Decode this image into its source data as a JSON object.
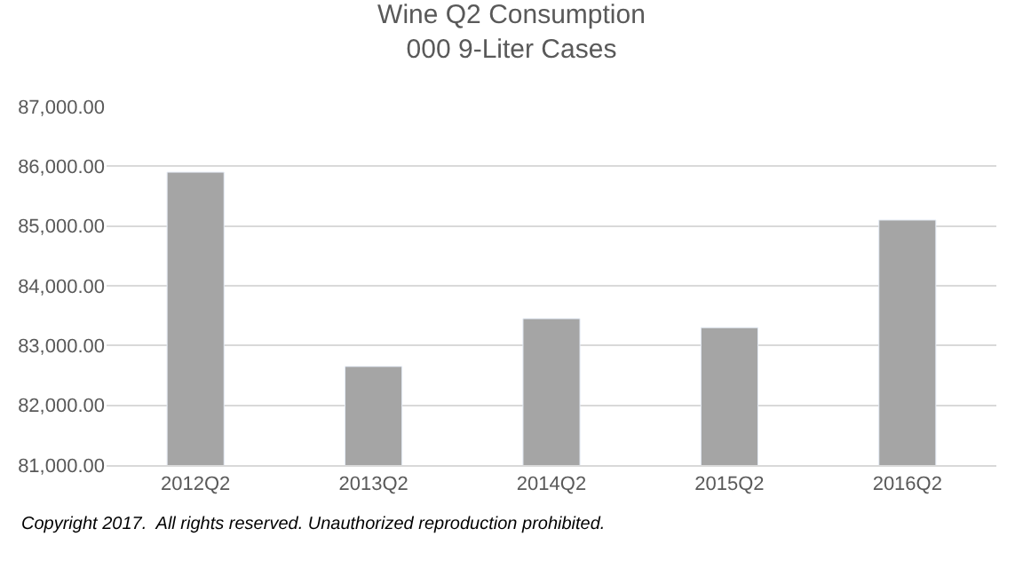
{
  "chart_data": {
    "type": "bar",
    "title": "Wine Q2 Consumption",
    "subtitle": "000 9-Liter Cases",
    "categories": [
      "2012Q2",
      "2013Q2",
      "2014Q2",
      "2015Q2",
      "2016Q2"
    ],
    "values": [
      85900,
      82650,
      83450,
      83300,
      85100
    ],
    "color": "#a5a5a5",
    "ylim": [
      81000,
      87000
    ],
    "yticks": [
      {
        "value": 81000,
        "label": "81,000.00"
      },
      {
        "value": 82000,
        "label": "82,000.00"
      },
      {
        "value": 83000,
        "label": "83,000.00"
      },
      {
        "value": 84000,
        "label": "84,000.00"
      },
      {
        "value": 85000,
        "label": "85,000.00"
      },
      {
        "value": 86000,
        "label": "86,000.00"
      },
      {
        "value": 87000,
        "label": "87,000.00"
      }
    ],
    "grid": "y",
    "annotations": [
      "Copyright 2017.  All rights reserved. Unauthorized reproduction prohibited."
    ]
  }
}
